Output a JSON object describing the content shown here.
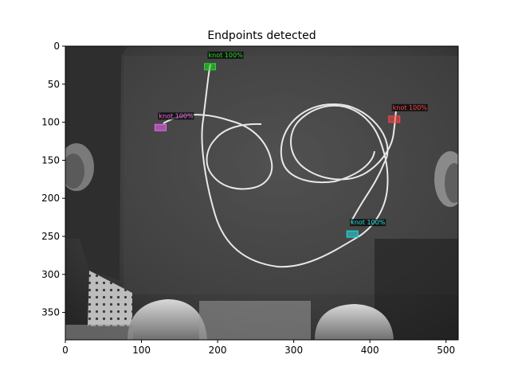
{
  "chart_data": {
    "type": "image",
    "title": "Endpoints detected",
    "xlim": [
      0,
      516
    ],
    "ylim": [
      386,
      0
    ],
    "x_ticks": [
      0,
      100,
      200,
      300,
      400,
      500
    ],
    "y_ticks": [
      0,
      50,
      100,
      150,
      200,
      250,
      300,
      350
    ],
    "detections": [
      {
        "label": "knot 100%",
        "color": "#22dd22",
        "x": 190,
        "y": 27
      },
      {
        "label": "knot 100%",
        "color": "#ee66ee",
        "x": 125,
        "y": 107
      },
      {
        "label": "knot 100%",
        "color": "#ff4444",
        "x": 432,
        "y": 96
      },
      {
        "label": "knot 100%",
        "color": "#22dddd",
        "x": 377,
        "y": 247
      }
    ]
  }
}
